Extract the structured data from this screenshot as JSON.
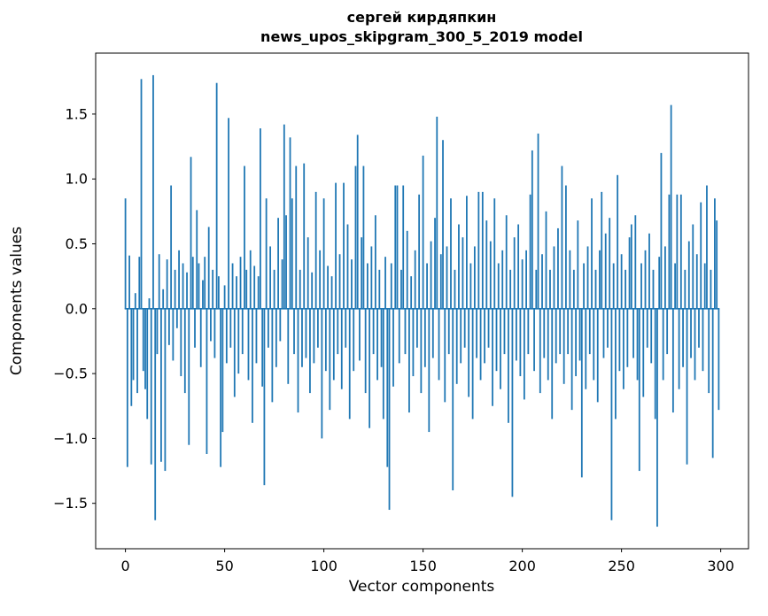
{
  "chart_data": {
    "type": "bar",
    "title_lines": [
      "сергей кирдяпкин",
      "news_upos_skipgram_300_5_2019 model"
    ],
    "title": "сергей кирдяпкин\nnews_upos_skipgram_300_5_2019 model",
    "xlabel": "Vector components",
    "ylabel": "Components values",
    "x_ticks": [
      0,
      50,
      100,
      150,
      200,
      250,
      300
    ],
    "y_ticks": [
      -1.5,
      -1.0,
      -0.5,
      0.0,
      0.5,
      1.0,
      1.5
    ],
    "xlim": [
      -15,
      314
    ],
    "ylim": [
      -1.85,
      1.97
    ],
    "grid": false,
    "legend": "none",
    "bar_color": "#1f77b4",
    "n_components": 300,
    "values": [
      0.85,
      -1.22,
      0.41,
      -0.75,
      -0.55,
      0.12,
      -0.65,
      0.4,
      1.77,
      -0.48,
      -0.62,
      -0.85,
      0.08,
      -1.2,
      1.8,
      -1.63,
      -0.35,
      0.42,
      -1.18,
      0.15,
      -1.25,
      0.38,
      -0.28,
      0.95,
      -0.4,
      0.3,
      -0.15,
      0.45,
      -0.52,
      0.35,
      -0.65,
      0.28,
      -1.05,
      1.17,
      0.4,
      -0.3,
      0.76,
      0.35,
      -0.45,
      0.22,
      0.4,
      -1.12,
      0.63,
      -0.25,
      0.3,
      -0.38,
      1.74,
      0.25,
      -1.22,
      -0.95,
      0.18,
      -0.42,
      1.47,
      -0.3,
      0.35,
      -0.68,
      0.25,
      -0.5,
      0.4,
      -0.35,
      1.1,
      0.3,
      -0.55,
      0.45,
      -0.88,
      0.33,
      -0.42,
      0.25,
      1.39,
      -0.6,
      -1.36,
      0.85,
      -0.3,
      0.48,
      -0.72,
      0.3,
      -0.45,
      0.7,
      -0.25,
      0.38,
      1.42,
      0.72,
      -0.58,
      1.32,
      0.85,
      -0.35,
      1.1,
      -0.8,
      0.3,
      -0.45,
      1.12,
      -0.38,
      0.55,
      -0.65,
      0.28,
      -0.42,
      0.9,
      -0.3,
      0.45,
      -1.0,
      0.85,
      -0.48,
      0.33,
      -0.78,
      0.25,
      -0.55,
      0.97,
      -0.35,
      0.42,
      -0.62,
      0.97,
      -0.3,
      0.65,
      -0.85,
      0.38,
      -0.48,
      1.1,
      1.34,
      -0.4,
      0.55,
      1.1,
      -0.65,
      0.35,
      -0.92,
      0.48,
      -0.35,
      0.72,
      -0.55,
      0.3,
      -0.45,
      -0.85,
      0.4,
      -1.22,
      -1.55,
      0.35,
      -0.6,
      0.95,
      0.95,
      -0.42,
      0.3,
      0.95,
      -0.35,
      0.6,
      -0.8,
      0.25,
      -0.52,
      0.45,
      -0.3,
      0.88,
      -0.65,
      1.18,
      -0.45,
      0.35,
      -0.95,
      0.52,
      -0.38,
      0.7,
      1.48,
      -0.55,
      0.42,
      1.3,
      -0.72,
      0.48,
      -0.35,
      0.85,
      -1.4,
      0.3,
      -0.58,
      0.65,
      -0.42,
      0.55,
      -0.3,
      0.87,
      -0.68,
      0.35,
      -0.85,
      0.48,
      -0.38,
      0.9,
      -0.55,
      0.9,
      -0.42,
      0.68,
      -0.3,
      0.52,
      -0.75,
      0.85,
      -0.48,
      0.35,
      -0.62,
      0.45,
      -0.35,
      0.72,
      -0.88,
      0.3,
      -1.45,
      0.55,
      -0.4,
      0.65,
      -0.52,
      0.38,
      -0.7,
      0.45,
      -0.35,
      0.88,
      1.22,
      -0.48,
      0.3,
      1.35,
      -0.65,
      0.42,
      -0.38,
      0.75,
      -0.55,
      0.3,
      -0.85,
      0.48,
      -0.42,
      0.62,
      -0.35,
      1.1,
      -0.58,
      0.95,
      -0.35,
      0.45,
      -0.78,
      0.3,
      -0.52,
      0.68,
      -0.4,
      -1.3,
      0.35,
      -0.62,
      0.48,
      -0.35,
      0.85,
      -0.55,
      0.3,
      -0.72,
      0.45,
      0.9,
      -0.38,
      0.58,
      -0.3,
      0.7,
      -1.63,
      0.35,
      -0.85,
      1.03,
      -0.48,
      0.42,
      -0.62,
      0.3,
      -0.45,
      0.55,
      0.65,
      -0.38,
      0.72,
      -0.55,
      -1.25,
      0.35,
      -0.68,
      0.45,
      -0.3,
      0.58,
      -0.42,
      0.3,
      -0.85,
      -1.68,
      0.4,
      1.2,
      -0.55,
      0.48,
      -0.35,
      0.88,
      1.57,
      -0.8,
      0.35,
      0.88,
      -0.62,
      0.88,
      -0.45,
      0.3,
      -1.2,
      0.52,
      -0.38,
      0.65,
      -0.55,
      0.42,
      -0.3,
      0.82,
      -0.48,
      0.35,
      0.95,
      -0.65,
      0.3,
      -1.15,
      0.85,
      0.68,
      -0.78
    ]
  }
}
